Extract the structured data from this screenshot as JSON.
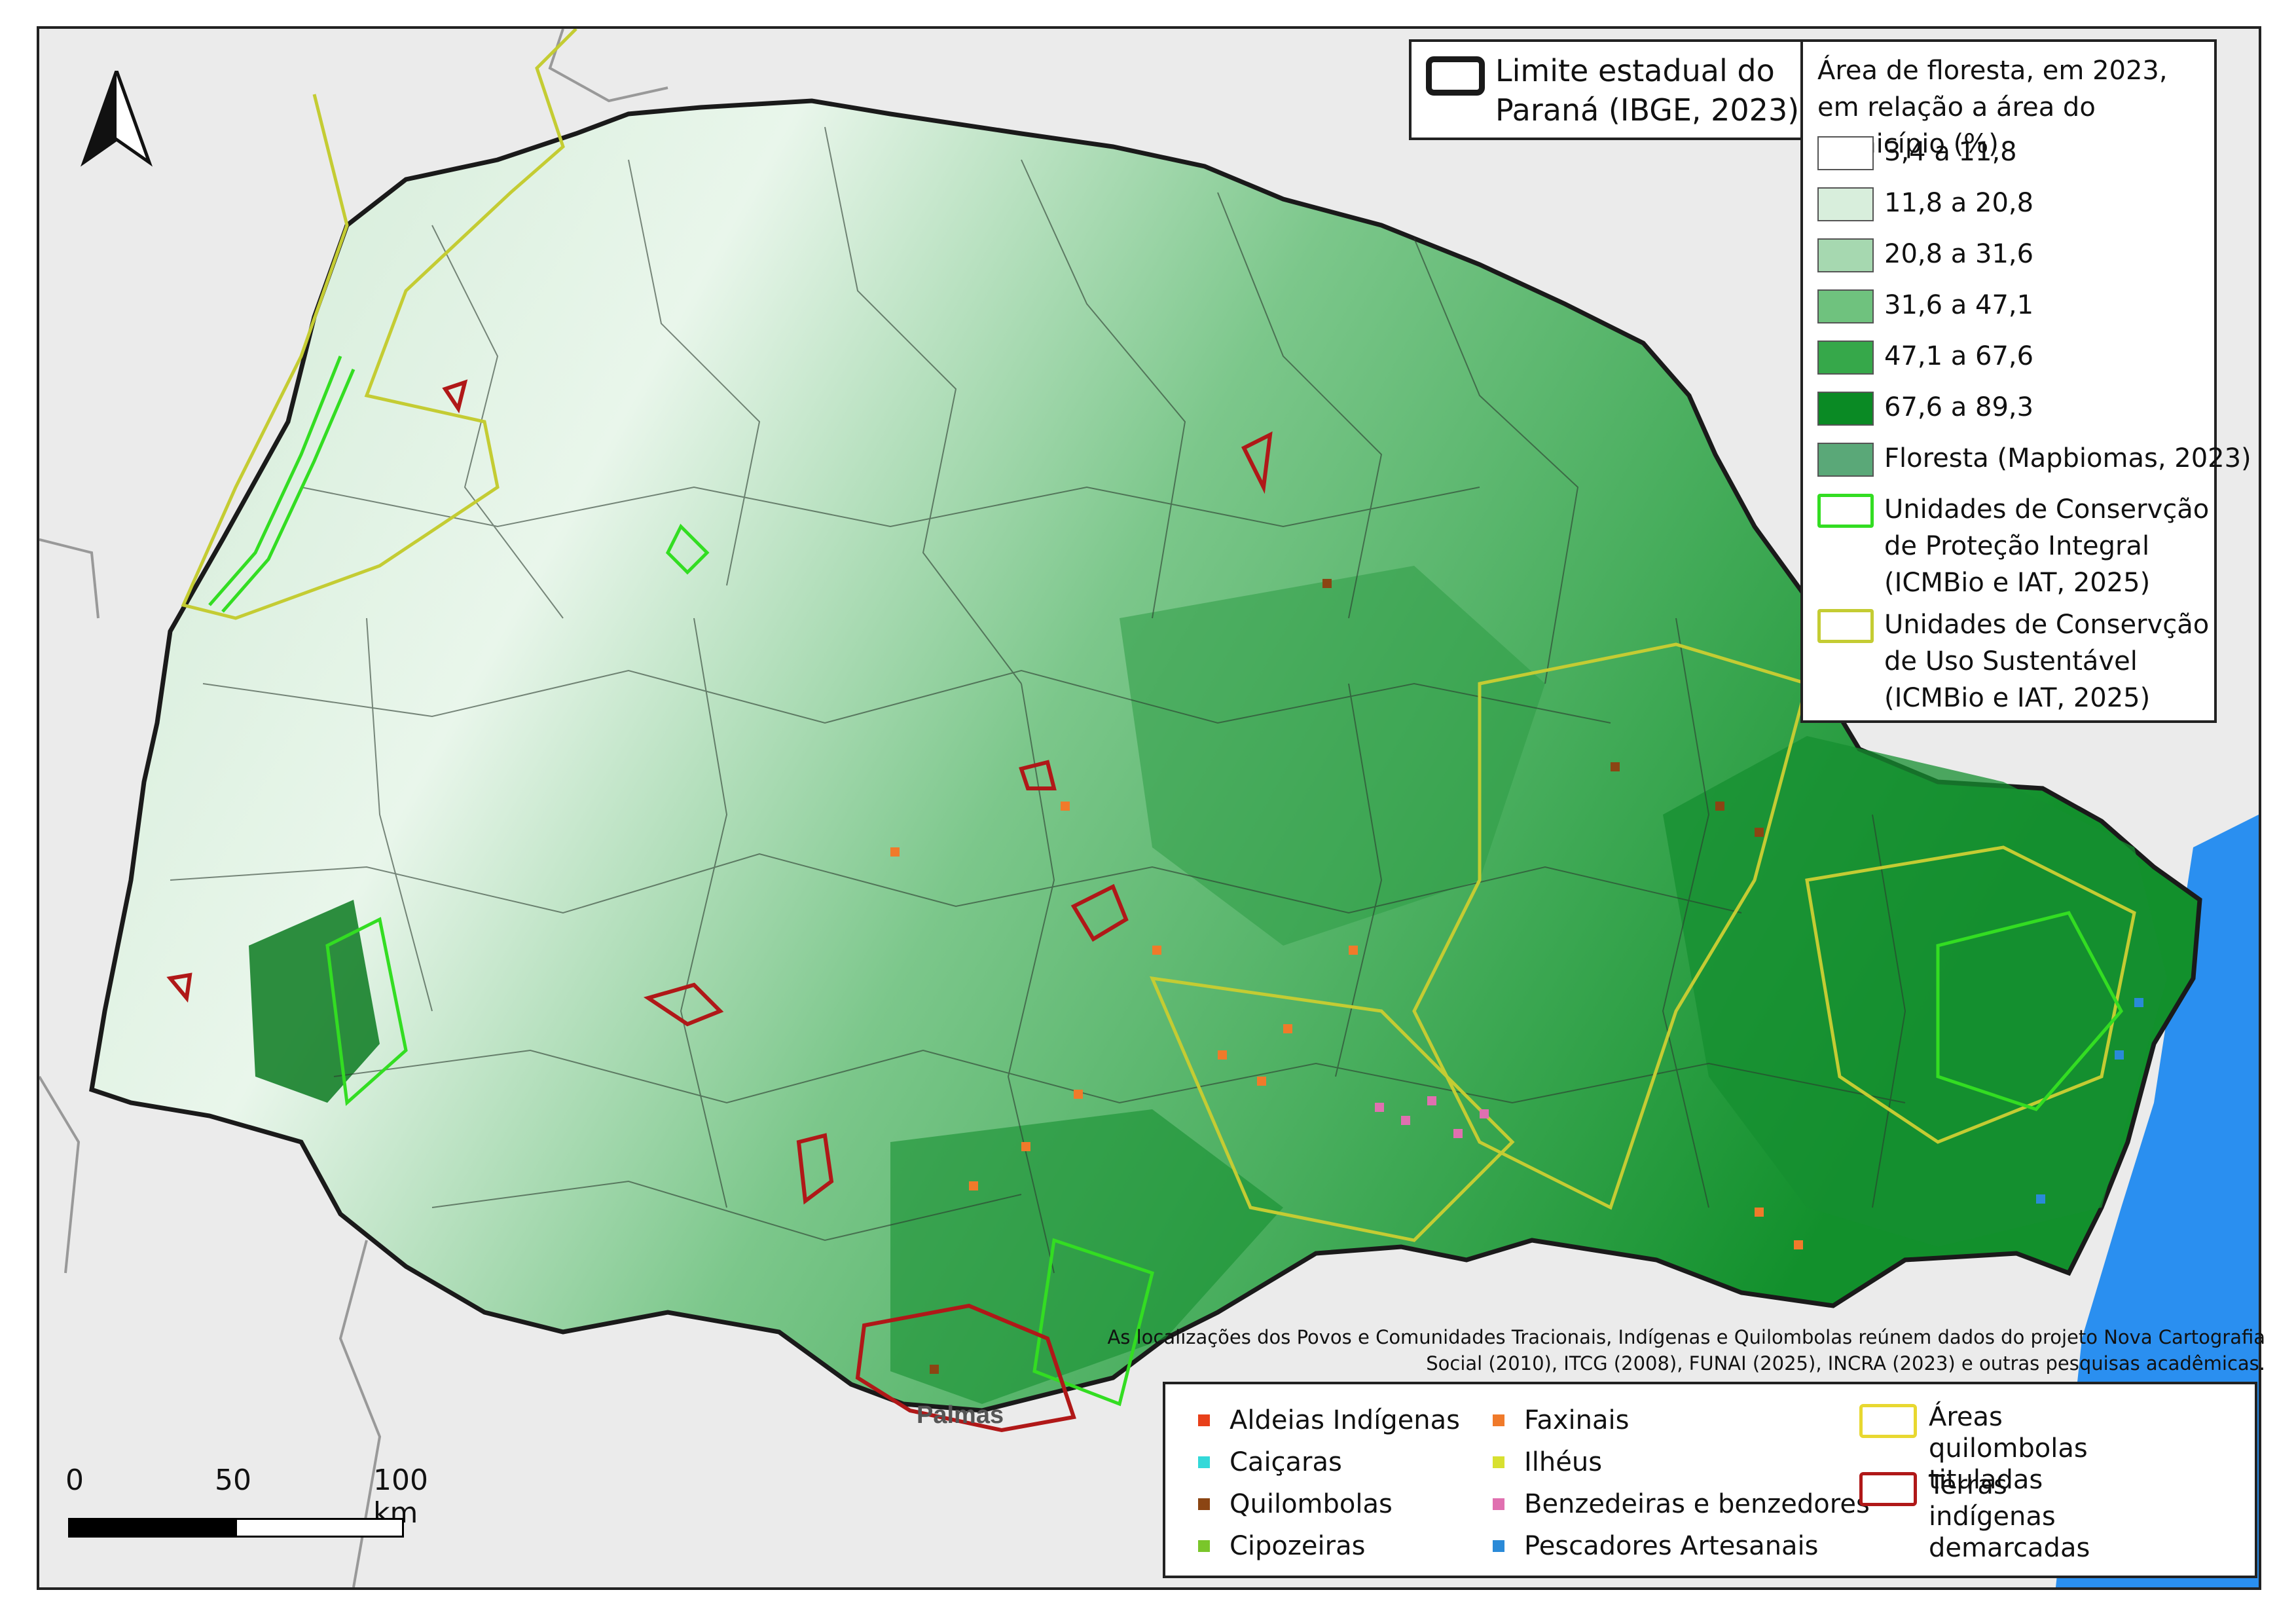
{
  "map": {
    "city_label": "Palmas",
    "scale_labels": [
      "0",
      "50",
      "100 km"
    ],
    "state_limit_label": "Limite estadual do Paraná (IBGE, 2023)",
    "forest_legend": {
      "title": "Área de floresta, em 2023, em relação a área do município (%)",
      "classes": [
        {
          "label": "3,4 a 11,8",
          "color": "#ffffff"
        },
        {
          "label": "11,8 a 20,8",
          "color": "#d8eedc"
        },
        {
          "label": "20,8 a 31,6",
          "color": "#a6d8b0"
        },
        {
          "label": "31,6 a 47,1",
          "color": "#6fc27e"
        },
        {
          "label": "47,1 a 67,6",
          "color": "#36a84a"
        },
        {
          "label": "67,6 a 89,3",
          "color": "#0a8a24"
        }
      ],
      "forest_label": "Floresta (Mapbiomas, 2023)",
      "forest_color": "#5aa878",
      "uc_integral_label": "Unidades de Conservção de Proteção Integral (ICMBio e IAT, 2025)",
      "uc_sustentavel_label": "Unidades de Conservção de Uso Sustentável (ICMBio e IAT, 2025)"
    },
    "source_note": "As localizações dos Povos e Comunidades Tracionais, Indígenas e Quilombolas reúnem dados do projeto Nova Cartografia Social (2010), ITCG (2008), FUNAI (2025), INCRA (2023) e outras pesquisas acadêmicas.",
    "people_legend": {
      "items": [
        {
          "label": "Aldeias Indígenas",
          "color": "#e8401a"
        },
        {
          "label": "Caiçaras",
          "color": "#33d9d9"
        },
        {
          "label": "Quilombolas",
          "color": "#8b4513"
        },
        {
          "label": "Cipozeiras",
          "color": "#7ac62a"
        },
        {
          "label": "Faxinais",
          "color": "#f07a2a"
        },
        {
          "label": "Ilhéus",
          "color": "#d8e030"
        },
        {
          "label": "Benzedeiras e benzedores",
          "color": "#e070b0"
        },
        {
          "label": "Pescadores Artesanais",
          "color": "#2a8ad8"
        }
      ],
      "quilombola_areas_label": "Áreas quilombolas tituladas",
      "quilombola_areas_color": "#e8d830",
      "indigenous_lands_label": "Terras indígenas demarcadas",
      "indigenous_lands_color": "#b01818"
    },
    "colors": {
      "background": "#ebebeb",
      "ocean": "#2a8ff0",
      "state_border": "#1a1a1a",
      "uc_integral": "#33dd22",
      "uc_sustentavel": "#c4cc33"
    }
  }
}
